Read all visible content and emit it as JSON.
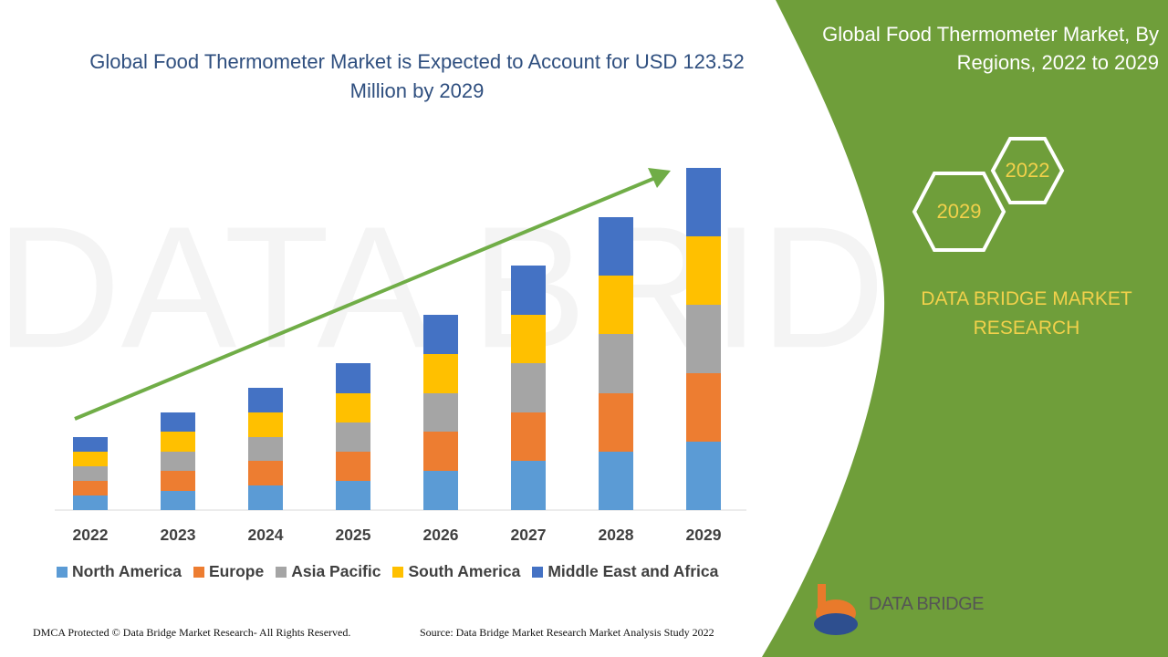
{
  "chart_data": {
    "type": "stacked-bar",
    "title": "Global Food Thermometer Market is Expected to Account for USD 123.52 Million by 2029",
    "categories": [
      "2022",
      "2023",
      "2024",
      "2025",
      "2026",
      "2027",
      "2028",
      "2029"
    ],
    "series": [
      {
        "name": "North America",
        "color": "#5b9bd5",
        "values": [
          16,
          21,
          27,
          32,
          43,
          54,
          64,
          75
        ]
      },
      {
        "name": "Europe",
        "color": "#ed7d31",
        "values": [
          16,
          22,
          27,
          32,
          43,
          53,
          64,
          75
        ]
      },
      {
        "name": "Asia Pacific",
        "color": "#a5a5a5",
        "values": [
          16,
          21,
          26,
          32,
          42,
          54,
          65,
          75
        ]
      },
      {
        "name": "South America",
        "color": "#ffc000",
        "values": [
          16,
          22,
          27,
          32,
          43,
          53,
          64,
          75
        ]
      },
      {
        "name": "Middle East and Africa",
        "color": "#4472c4",
        "values": [
          16,
          21,
          27,
          33,
          43,
          54,
          64,
          75
        ]
      }
    ]
  },
  "panel": {
    "title": "Global Food Thermometer Market, By Regions, 2022 to 2029",
    "hex_start": "2022",
    "hex_end": "2029",
    "brand": "DATA BRIDGE MARKET RESEARCH",
    "logo": "DATA BRIDGE"
  },
  "footer": {
    "left": "DMCA Protected © Data Bridge Market Research- All Rights Reserved.",
    "right": "Source: Data Bridge Market Research Market Analysis Study 2022"
  }
}
